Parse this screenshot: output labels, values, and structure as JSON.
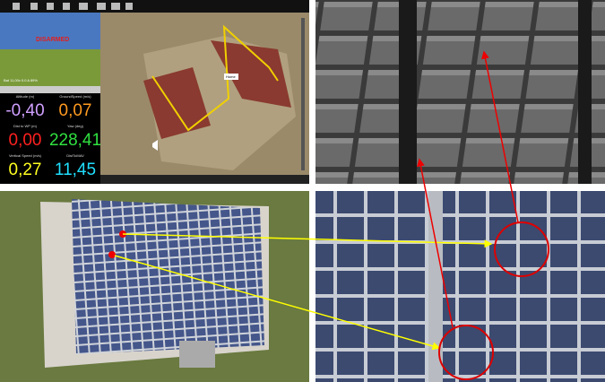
{
  "hud": {
    "status": "DISARMED",
    "battery": "Bat 11,00v 0.0 A 89%"
  },
  "quick": {
    "items": [
      {
        "label": "Altitude (m)",
        "value": "-0,40"
      },
      {
        "label": "GroundSpeed (m/s)",
        "value": "0,07"
      },
      {
        "label": "Dist to WP (m)",
        "value": "0,00"
      },
      {
        "label": "Yaw (deg)",
        "value": "228,41"
      },
      {
        "label": "Vertical Speed (m/s)",
        "value": "0,27"
      },
      {
        "label": "DistToMAV",
        "value": "11,45"
      }
    ]
  },
  "map": {
    "home": "Home"
  }
}
